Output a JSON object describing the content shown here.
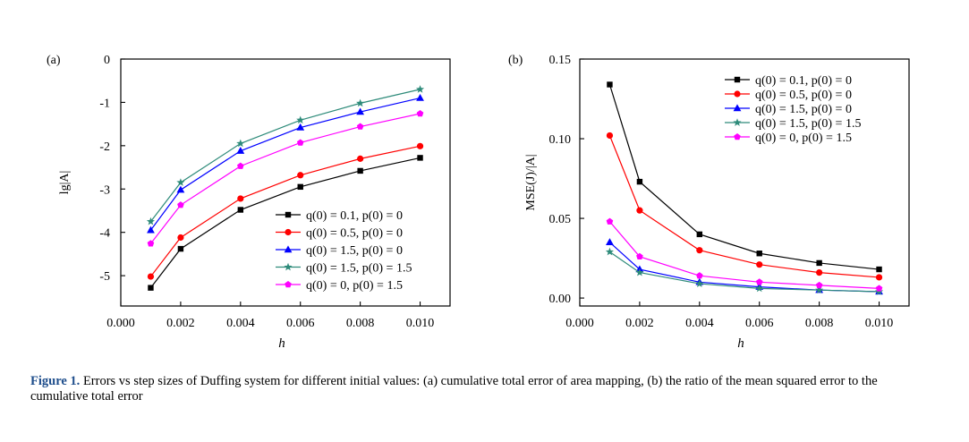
{
  "caption": {
    "label": "Figure 1.",
    "text": " Errors vs step sizes of Duffing system for different initial values: (a) cumulative total error of area mapping, (b) the ratio of the mean squared error to the cumulative total error"
  },
  "chart_data": [
    {
      "type": "line",
      "panel_label": "(a)",
      "xlabel": "h",
      "ylabel": "lg|A|",
      "xlim": [
        0,
        0.011
      ],
      "ylim": [
        -5.7,
        0
      ],
      "xticks": [
        "0.000",
        "0.002",
        "0.004",
        "0.006",
        "0.008",
        "0.010"
      ],
      "xtick_values": [
        0,
        0.002,
        0.004,
        0.006,
        0.008,
        0.01
      ],
      "yticks": [
        "0",
        "-1",
        "-2",
        "-3",
        "-4",
        "-5"
      ],
      "ytick_values": [
        0,
        -1,
        -2,
        -3,
        -4,
        -5
      ],
      "grid": false,
      "legend_position": "bottom-right",
      "x": [
        0.001,
        0.002,
        0.004,
        0.006,
        0.008,
        0.01
      ],
      "series": [
        {
          "name": "q(0) = 0.1, p(0) = 0",
          "color": "#000000",
          "marker": "square",
          "values": [
            -5.28,
            -4.38,
            -3.48,
            -2.95,
            -2.58,
            -2.28
          ]
        },
        {
          "name": "q(0) = 0.5, p(0) = 0",
          "color": "#ff0000",
          "marker": "circle",
          "values": [
            -5.02,
            -4.12,
            -3.22,
            -2.68,
            -2.3,
            -2.01
          ]
        },
        {
          "name": "q(0) = 1.5, p(0) = 0",
          "color": "#0000ff",
          "marker": "triangle",
          "values": [
            -3.95,
            -3.02,
            -2.12,
            -1.58,
            -1.22,
            -0.9
          ]
        },
        {
          "name": "q(0) = 1.5, p(0) = 1.5",
          "color": "#2e8b7a",
          "marker": "star",
          "values": [
            -3.75,
            -2.85,
            -1.95,
            -1.41,
            -1.02,
            -0.7
          ]
        },
        {
          "name": "q(0) = 0, p(0) = 1.5",
          "color": "#ff00ff",
          "marker": "pentagon",
          "values": [
            -4.26,
            -3.37,
            -2.47,
            -1.93,
            -1.56,
            -1.26
          ]
        }
      ]
    },
    {
      "type": "line",
      "panel_label": "(b)",
      "xlabel": "h",
      "ylabel": "MSE(J)/|A|",
      "xlim": [
        0,
        0.011
      ],
      "ylim": [
        -0.005,
        0.15
      ],
      "xticks": [
        "0.000",
        "0.002",
        "0.004",
        "0.006",
        "0.008",
        "0.010"
      ],
      "xtick_values": [
        0,
        0.002,
        0.004,
        0.006,
        0.008,
        0.01
      ],
      "yticks": [
        "0.00",
        "0.05",
        "0.10",
        "0.15"
      ],
      "ytick_values": [
        0,
        0.05,
        0.1,
        0.15
      ],
      "grid": false,
      "legend_position": "top-right",
      "x": [
        0.001,
        0.002,
        0.004,
        0.006,
        0.008,
        0.01
      ],
      "series": [
        {
          "name": "q(0) = 0.1, p(0) = 0",
          "color": "#000000",
          "marker": "square",
          "values": [
            0.134,
            0.073,
            0.04,
            0.028,
            0.022,
            0.018
          ]
        },
        {
          "name": "q(0) = 0.5, p(0) = 0",
          "color": "#ff0000",
          "marker": "circle",
          "values": [
            0.102,
            0.055,
            0.03,
            0.021,
            0.016,
            0.013
          ]
        },
        {
          "name": "q(0) = 1.5, p(0) = 0",
          "color": "#0000ff",
          "marker": "triangle",
          "values": [
            0.035,
            0.018,
            0.01,
            0.007,
            0.005,
            0.004
          ]
        },
        {
          "name": "q(0) = 1.5, p(0) = 1.5",
          "color": "#2e8b7a",
          "marker": "star",
          "values": [
            0.029,
            0.016,
            0.009,
            0.006,
            0.005,
            0.004
          ]
        },
        {
          "name": "q(0) = 0, p(0) = 1.5",
          "color": "#ff00ff",
          "marker": "pentagon",
          "values": [
            0.048,
            0.026,
            0.014,
            0.01,
            0.008,
            0.006
          ]
        }
      ]
    }
  ]
}
